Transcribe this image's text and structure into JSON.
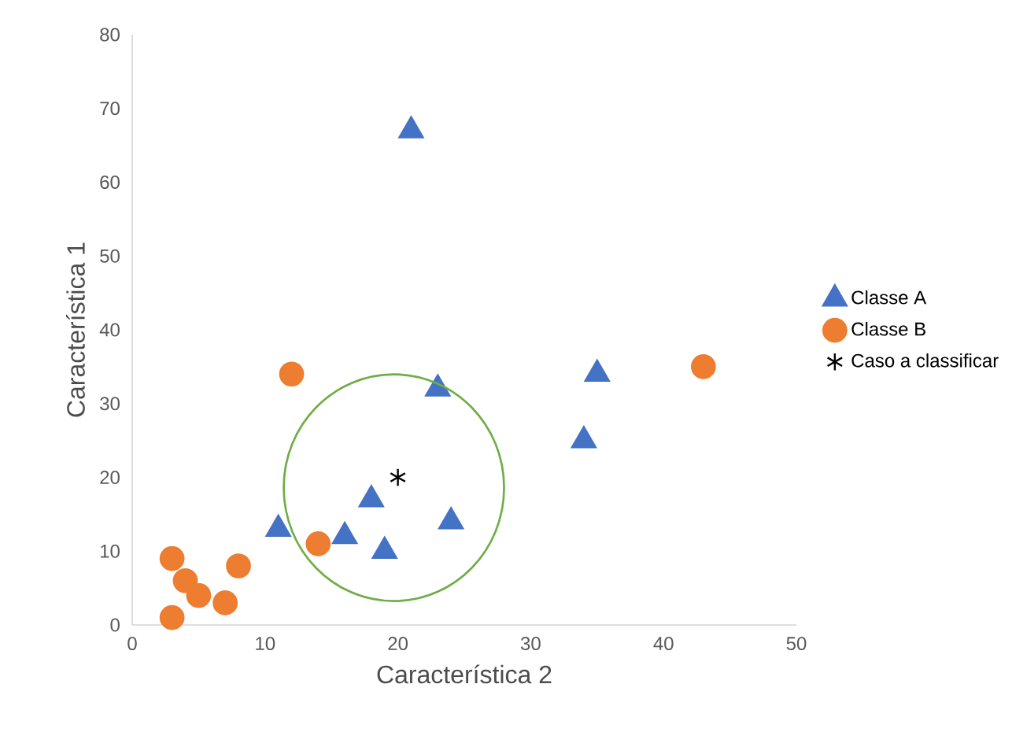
{
  "chart_data": {
    "type": "scatter",
    "xlabel": "Característica 2",
    "ylabel": "Característica 1",
    "xlim": [
      0,
      50
    ],
    "ylim": [
      0,
      80
    ],
    "xticks": [
      0,
      10,
      20,
      30,
      40,
      50
    ],
    "yticks": [
      0,
      10,
      20,
      30,
      40,
      50,
      60,
      70,
      80
    ],
    "grid": false,
    "legend": "right",
    "series": [
      {
        "name": "Classe A",
        "color": "#4472c4",
        "marker": "triangle",
        "x": [
          21,
          23,
          35,
          34,
          11,
          16,
          18,
          19,
          24
        ],
        "values": [
          67,
          32,
          34,
          25,
          13,
          12,
          17,
          10,
          14
        ]
      },
      {
        "name": "Classe B",
        "color": "#ed7d31",
        "marker": "circle",
        "x": [
          12,
          43,
          14,
          3,
          4,
          5,
          7,
          8,
          3
        ],
        "values": [
          34,
          35,
          11,
          9,
          6,
          4,
          3,
          8,
          1
        ]
      },
      {
        "name": "Caso a classificar",
        "color": "#000000",
        "marker": "cross",
        "x": [
          20
        ],
        "values": [
          20
        ]
      }
    ]
  }
}
